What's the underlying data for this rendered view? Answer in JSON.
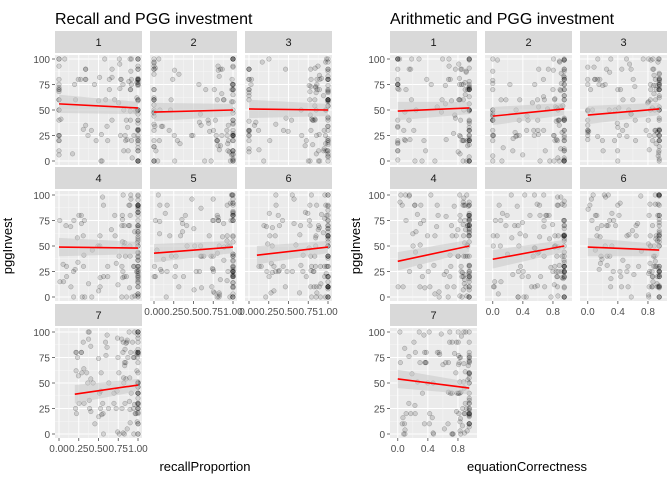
{
  "chart_data": [
    {
      "type": "scatter",
      "title": "Recall and PGG investment",
      "xlabel": "recallProportion",
      "ylabel": "pggInvest",
      "xlim": [
        0,
        1
      ],
      "ylim": [
        0,
        100
      ],
      "x_ticks": [
        "0.00",
        "0.25",
        "0.50",
        "0.75",
        "1.00"
      ],
      "y_ticks": [
        "0",
        "25",
        "50",
        "75",
        "100"
      ],
      "grid": true,
      "points_color": "#000000",
      "fit_color": "#ff0000",
      "ribbon_color": "#c8c8c8",
      "panels": [
        {
          "facet": "1",
          "fit": {
            "x": [
              0,
              1
            ],
            "y": [
              56,
              52
            ]
          },
          "x_range": [
            0,
            1
          ],
          "x_ticks_shown": false,
          "y_ticks_shown": true
        },
        {
          "facet": "2",
          "fit": {
            "x": [
              0,
              1
            ],
            "y": [
              48,
              50
            ]
          },
          "x_range": [
            0,
            1
          ],
          "x_ticks_shown": false,
          "y_ticks_shown": false
        },
        {
          "facet": "3",
          "fit": {
            "x": [
              0,
              1
            ],
            "y": [
              51,
              50
            ]
          },
          "x_range": [
            0,
            1
          ],
          "x_ticks_shown": false,
          "y_ticks_shown": false
        },
        {
          "facet": "4",
          "fit": {
            "x": [
              0,
              1
            ],
            "y": [
              49,
              48
            ]
          },
          "x_range": [
            0,
            1
          ],
          "x_ticks_shown": false,
          "y_ticks_shown": true
        },
        {
          "facet": "5",
          "fit": {
            "x": [
              0,
              1
            ],
            "y": [
              43,
              49
            ]
          },
          "x_range": [
            0,
            1
          ],
          "x_ticks_shown": true,
          "y_ticks_shown": false
        },
        {
          "facet": "6",
          "fit": {
            "x": [
              0.1,
              1
            ],
            "y": [
              41,
              49
            ]
          },
          "x_range": [
            0.1,
            1
          ],
          "x_ticks_shown": true,
          "y_ticks_shown": false
        },
        {
          "facet": "7",
          "fit": {
            "x": [
              0.2,
              1
            ],
            "y": [
              39,
              48
            ]
          },
          "x_range": [
            0.2,
            1
          ],
          "x_ticks_shown": true,
          "y_ticks_shown": true
        }
      ]
    },
    {
      "type": "scatter",
      "title": "Arithmetic and PGG investment",
      "xlabel": "equationCorrectness",
      "ylabel": "pggInvest",
      "xlim": [
        -0.05,
        1.0
      ],
      "ylim": [
        0,
        100
      ],
      "x_ticks": [
        "0.0",
        "0.4",
        "0.8"
      ],
      "y_ticks": [
        "0",
        "25",
        "50",
        "75",
        "100"
      ],
      "grid": true,
      "points_color": "#000000",
      "fit_color": "#ff0000",
      "ribbon_color": "#c8c8c8",
      "panels": [
        {
          "facet": "1",
          "fit": {
            "x": [
              0,
              0.95
            ],
            "y": [
              49,
              52
            ]
          },
          "x_range": [
            0,
            0.95
          ],
          "x_ticks_shown": false,
          "y_ticks_shown": true
        },
        {
          "facet": "2",
          "fit": {
            "x": [
              0,
              0.95
            ],
            "y": [
              44,
              51
            ]
          },
          "x_range": [
            0,
            0.95
          ],
          "x_ticks_shown": false,
          "y_ticks_shown": false
        },
        {
          "facet": "3",
          "fit": {
            "x": [
              0,
              0.95
            ],
            "y": [
              45,
              51
            ]
          },
          "x_range": [
            0,
            0.95
          ],
          "x_ticks_shown": false,
          "y_ticks_shown": false
        },
        {
          "facet": "4",
          "fit": {
            "x": [
              0,
              0.95
            ],
            "y": [
              35,
              50
            ]
          },
          "x_range": [
            0,
            0.95
          ],
          "x_ticks_shown": false,
          "y_ticks_shown": true
        },
        {
          "facet": "5",
          "fit": {
            "x": [
              0,
              0.95
            ],
            "y": [
              37,
              50
            ]
          },
          "x_range": [
            0,
            0.95
          ],
          "x_ticks_shown": true,
          "y_ticks_shown": false
        },
        {
          "facet": "6",
          "fit": {
            "x": [
              0,
              0.95
            ],
            "y": [
              49,
              46
            ]
          },
          "x_range": [
            0,
            0.95
          ],
          "x_ticks_shown": true,
          "y_ticks_shown": false
        },
        {
          "facet": "7",
          "fit": {
            "x": [
              0,
              0.95
            ],
            "y": [
              54,
              45
            ]
          },
          "x_range": [
            0,
            0.95
          ],
          "x_ticks_shown": true,
          "y_ticks_shown": true
        }
      ]
    }
  ]
}
